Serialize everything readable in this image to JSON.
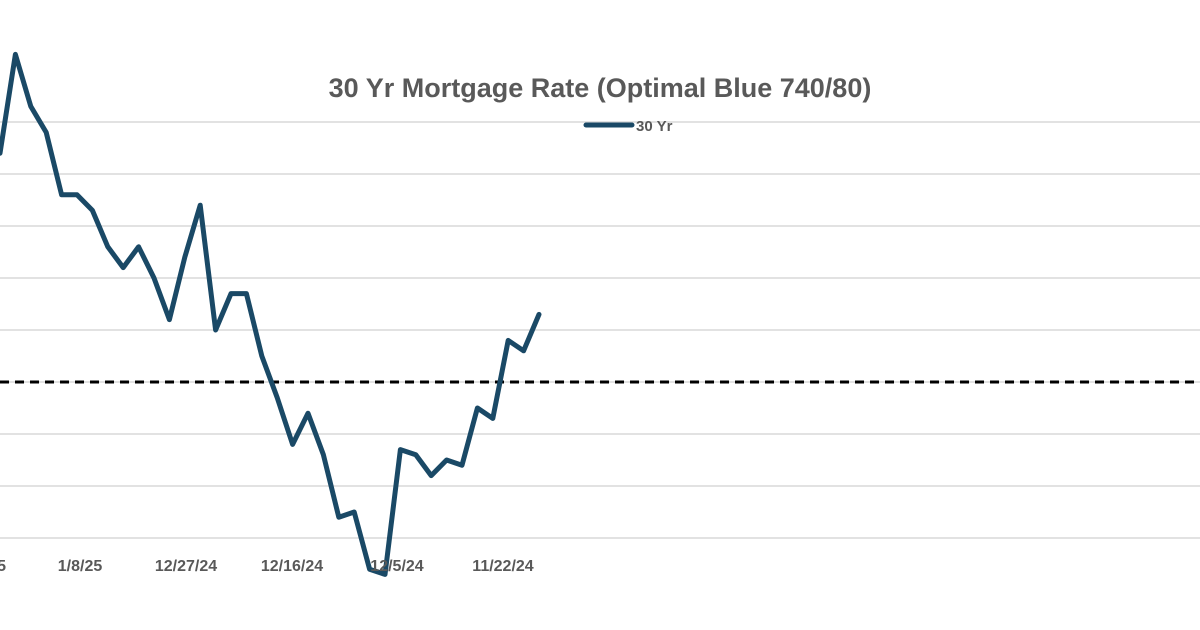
{
  "chart_data": {
    "type": "line",
    "title": "30 Yr Mortgage Rate (Optimal Blue 740/80)",
    "legend": {
      "position": "top-center"
    },
    "series": [
      {
        "name": "30 Yr",
        "color": "#1a4966",
        "note": "values are relative levels read from gridlines (y-axis labels not visible); points ordered left to right, newest on the left",
        "values": [
          6.94,
          7.13,
          7.03,
          6.98,
          6.86,
          6.86,
          6.83,
          6.76,
          6.72,
          6.76,
          6.7,
          6.62,
          6.74,
          6.84,
          6.6,
          6.67,
          6.67,
          6.55,
          6.47,
          6.38,
          6.44,
          6.36,
          6.24,
          6.25,
          6.14,
          6.13,
          6.37,
          6.36,
          6.32,
          6.35,
          6.34,
          6.45,
          6.43,
          6.58,
          6.56,
          6.63
        ]
      }
    ],
    "x_tick_labels": [
      "1/8/25",
      "12/27/24",
      "12/16/24",
      "12/5/24",
      "11/22/24"
    ],
    "partial_x_tick_label": "5",
    "reference_line": {
      "value": 6.5,
      "style": "dashed",
      "color": "#000000"
    },
    "grid": true,
    "y_gridlines": [
      6.0,
      6.1,
      6.2,
      6.3,
      6.4,
      6.5,
      6.6,
      6.7,
      6.8,
      6.9,
      7.0,
      7.1,
      7.2,
      7.3
    ]
  }
}
